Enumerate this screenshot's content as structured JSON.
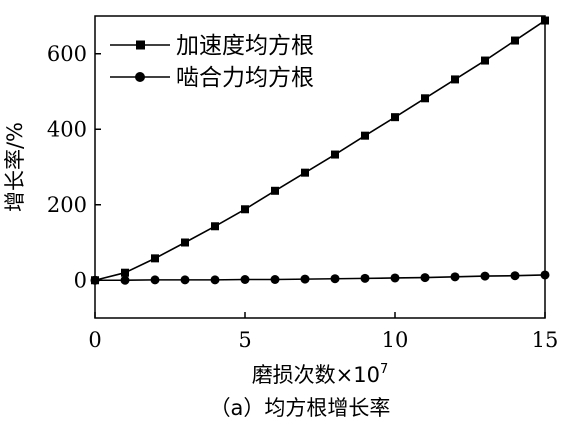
{
  "chart_data": {
    "type": "line",
    "xlabel_parts": {
      "base": "磨损次数×10",
      "exp": "7"
    },
    "ylabel": "增长率/%",
    "caption": "（a）均方根增长率",
    "xlim": [
      0,
      15
    ],
    "ylim": [
      -100,
      700
    ],
    "xticks": [
      0,
      5,
      10,
      15
    ],
    "yticks": [
      0,
      200,
      400,
      600
    ],
    "legend_position": "top-left",
    "grid": false,
    "series": [
      {
        "name": "加速度均方根",
        "marker": "square",
        "x": [
          0,
          1,
          2,
          3,
          4,
          5,
          6,
          7,
          8,
          9,
          10,
          11,
          12,
          13,
          14,
          15
        ],
        "y": [
          0,
          20,
          58,
          100,
          143,
          188,
          237,
          285,
          333,
          383,
          432,
          482,
          532,
          582,
          635,
          688
        ]
      },
      {
        "name": "啮合力均方根",
        "marker": "circle",
        "x": [
          0,
          1,
          2,
          3,
          4,
          5,
          6,
          7,
          8,
          9,
          10,
          11,
          12,
          13,
          14,
          15
        ],
        "y": [
          0,
          0,
          1,
          1,
          1,
          2,
          2,
          3,
          4,
          5,
          6,
          7,
          9,
          11,
          12,
          14
        ]
      }
    ]
  }
}
